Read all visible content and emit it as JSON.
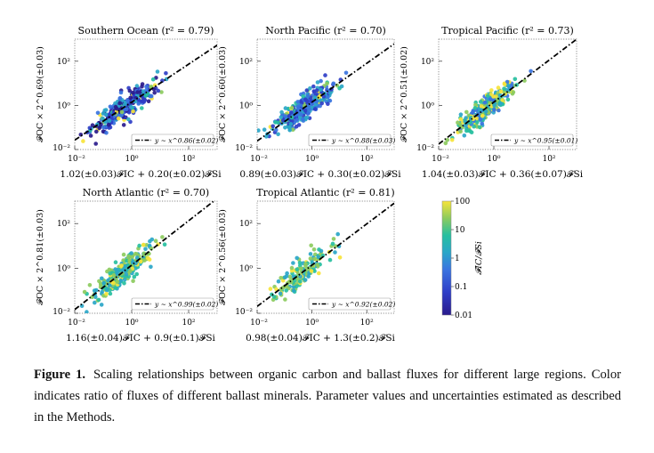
{
  "figure": {
    "panels": [
      {
        "id": "southern-ocean",
        "title": "Southern Ocean (r² = 0.79)",
        "ylabel": "𝓕OC × 2^0.69(±0.03)",
        "xlabel": "1.02(±0.03)𝓕IC + 0.20(±0.02)𝓕Si",
        "legend": "y ~ x^0.86(±0.02)",
        "chart_data": {
          "type": "scatter",
          "xscale": "log",
          "yscale": "log",
          "xlim": [
            0.01,
            1000
          ],
          "ylim": [
            0.01,
            1000
          ],
          "exponent": 0.86,
          "n_points": 320,
          "xticks": [
            "10⁻²",
            "10⁰",
            "10²"
          ],
          "yticks": [
            "10²",
            "10⁰",
            "10⁻²"
          ],
          "color_mode": "dark"
        }
      },
      {
        "id": "north-pacific",
        "title": "North Pacific (r² = 0.70)",
        "ylabel": "𝓕OC × 2^0.60(±0.03)",
        "xlabel": "0.89(±0.03)𝓕IC + 0.30(±0.02)𝓕Si",
        "legend": "y ~ x^0.88(±0.03)",
        "chart_data": {
          "type": "scatter",
          "xscale": "log",
          "yscale": "log",
          "xlim": [
            0.01,
            1000
          ],
          "ylim": [
            0.01,
            1000
          ],
          "exponent": 0.88,
          "n_points": 340,
          "xticks": [
            "10⁻²",
            "10⁰",
            "10²"
          ],
          "yticks": [
            "10²",
            "10⁰",
            "10⁻²"
          ],
          "color_mode": "blue"
        }
      },
      {
        "id": "tropical-pacific",
        "title": "Tropical Pacific (r² = 0.73)",
        "ylabel": "𝓕OC × 2^0.51(±0.02)",
        "xlabel": "1.04(±0.03)𝓕IC + 0.36(±0.07)𝓕Si",
        "legend": "y ~ x^0.95(±0.01)",
        "chart_data": {
          "type": "scatter",
          "xscale": "log",
          "yscale": "log",
          "xlim": [
            0.01,
            1000
          ],
          "ylim": [
            0.01,
            1000
          ],
          "exponent": 0.95,
          "n_points": 320,
          "xticks": [
            "10⁻²",
            "10⁰",
            "10²"
          ],
          "yticks": [
            "10²",
            "10⁰",
            "10⁻²"
          ],
          "color_mode": "mixed"
        }
      },
      {
        "id": "north-atlantic",
        "title": "North Atlantic (r² = 0.70)",
        "ylabel": "𝓕OC × 2^0.81(±0.03)",
        "xlabel": "1.16(±0.04)𝓕IC + 0.9(±0.1)𝓕Si",
        "legend": "y ~ x^0.99(±0.02)",
        "chart_data": {
          "type": "scatter",
          "xscale": "log",
          "yscale": "log",
          "xlim": [
            0.01,
            1000
          ],
          "ylim": [
            0.01,
            1000
          ],
          "exponent": 0.99,
          "n_points": 260,
          "xticks": [
            "10⁻²",
            "10⁰",
            "10²"
          ],
          "yticks": [
            "10²",
            "10⁰",
            "10⁻²"
          ],
          "color_mode": "warm"
        }
      },
      {
        "id": "tropical-atlantic",
        "title": "Tropical Atlantic (r² = 0.81)",
        "ylabel": "𝓕OC × 2^0.56(±0.03)",
        "xlabel": "0.98(±0.04)𝓕IC + 1.3(±0.2)𝓕Si",
        "legend": "y ~ x^0.92(±0.02)",
        "chart_data": {
          "type": "scatter",
          "xscale": "log",
          "yscale": "log",
          "xlim": [
            0.01,
            1000
          ],
          "ylim": [
            0.01,
            1000
          ],
          "exponent": 0.92,
          "n_points": 150,
          "xticks": [
            "10⁻²",
            "10⁰",
            "10²"
          ],
          "yticks": [
            "10²",
            "10⁰",
            "10⁻²"
          ],
          "color_mode": "warm"
        }
      }
    ],
    "colorbar": {
      "label": "𝓕IC/𝓕Si",
      "ticks": [
        "100",
        "10",
        "1",
        "0.1",
        "0.01"
      ],
      "range": [
        0.01,
        100
      ]
    }
  },
  "caption": {
    "label": "Figure 1.",
    "text": "Scaling relationships between organic carbon and ballast fluxes for different large regions. Color indicates ratio of fluxes of different ballast minerals. Parameter values and uncertainties estimated as described in the Methods."
  }
}
